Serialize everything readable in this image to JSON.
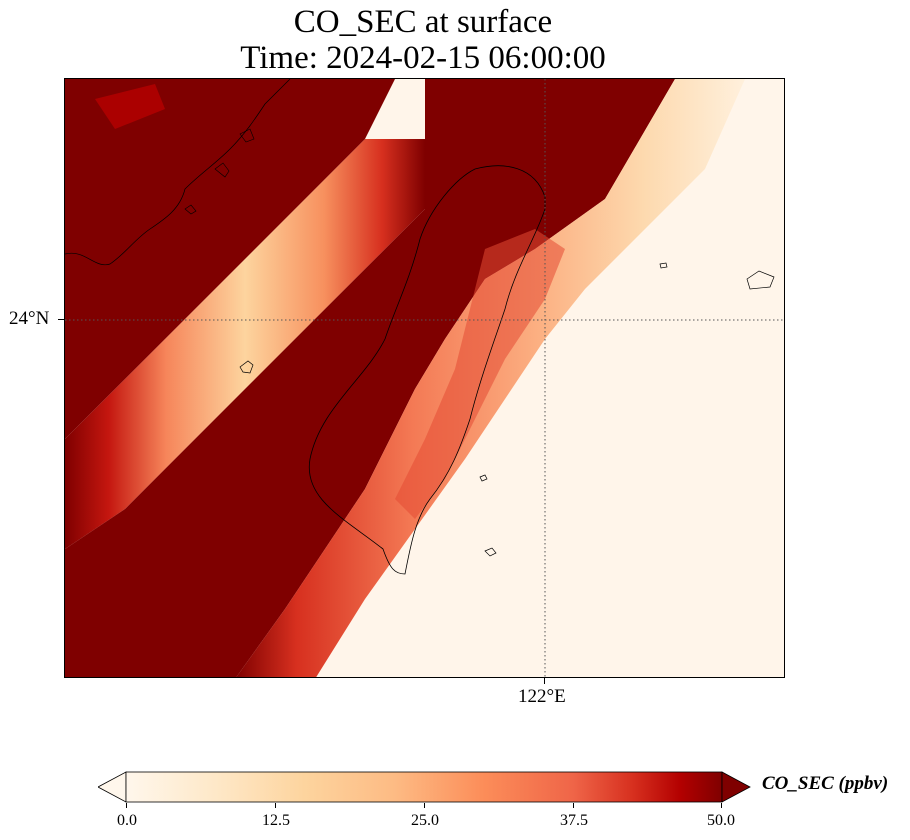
{
  "title": {
    "line1": "CO_SEC at surface",
    "line2": "Time: 2024-02-15 06:00:00"
  },
  "map": {
    "lat_label": "24°N",
    "lon_label": "122°E",
    "gridlines": "dotted",
    "land_outline": "Taiwan and offshore islands",
    "field_colors": [
      "#fff5ea",
      "#fdd9ae",
      "#fcae78",
      "#f06e4f",
      "#d7301f",
      "#b00000",
      "#7f0000"
    ]
  },
  "colorbar": {
    "label": "CO_SEC (ppbv)",
    "ticks": [
      "0.0",
      "12.5",
      "25.0",
      "37.5",
      "50.0"
    ],
    "range": [
      0,
      50
    ],
    "extend": "both",
    "colormap": "OrRd"
  }
}
